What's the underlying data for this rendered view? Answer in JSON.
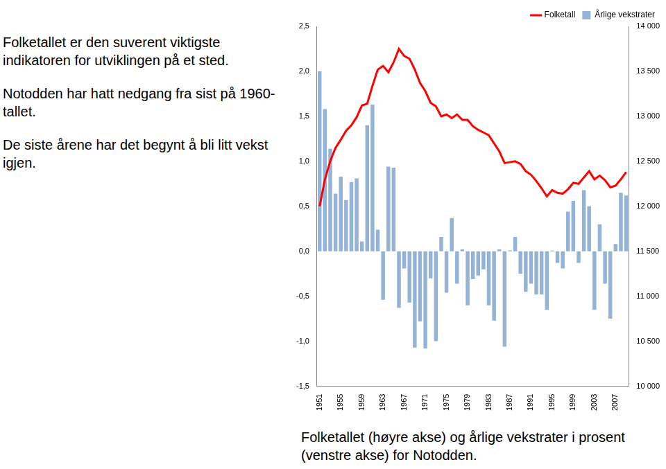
{
  "chart_data": {
    "type": "bar",
    "title": "Folketallet (høyre akse) og årlige vekstrater i prosent (venstre akse) for Notodden.",
    "annotations": [
      "Folketallet er den suverent viktigste indikatoren for utviklingen på et sted.",
      "Notodden har hatt nedgang fra sist på 1960-tallet.",
      "De siste årene har det begynt å bli litt vekst igjen."
    ],
    "categories": [
      "1951",
      null,
      null,
      null,
      "1955",
      null,
      null,
      null,
      "1959",
      null,
      null,
      null,
      "1963",
      null,
      null,
      null,
      "1967",
      null,
      null,
      null,
      "1971",
      null,
      null,
      null,
      "1975",
      null,
      null,
      null,
      "1979",
      null,
      null,
      null,
      "1983",
      null,
      null,
      null,
      "1987",
      null,
      null,
      null,
      "1991",
      null,
      null,
      null,
      "1995",
      null,
      null,
      null,
      "1999",
      null,
      null,
      null,
      "2003",
      null,
      null,
      null,
      "2007",
      null,
      null
    ],
    "series": [
      {
        "name": "Årlige vekstrater",
        "type": "bar",
        "color": "#95b3d7",
        "values": [
          2.0,
          1.58,
          1.14,
          0.64,
          0.83,
          0.57,
          0.77,
          0.81,
          0.11,
          1.4,
          1.63,
          0.24,
          -0.54,
          0.94,
          0.93,
          -0.63,
          -0.19,
          -0.57,
          -1.07,
          -0.78,
          -1.08,
          -0.3,
          -1.0,
          0.16,
          -0.46,
          0.37,
          -0.36,
          0.02,
          -0.6,
          -0.31,
          -0.27,
          -0.2,
          -0.6,
          -0.77,
          0.02,
          -1.06,
          0.01,
          0.16,
          -0.25,
          -0.45,
          -0.36,
          -0.48,
          -0.48,
          -0.65,
          0.01,
          -0.13,
          -0.19,
          0.44,
          0.56,
          -0.13,
          0.68,
          0.5,
          -0.65,
          0.3,
          -0.36,
          -0.75,
          0.08,
          0.65,
          0.62
        ]
      },
      {
        "name": "Folketall",
        "type": "line",
        "color": "#ff0000",
        "axis": "y2",
        "values": [
          12000,
          12300,
          12500,
          12650,
          12740,
          12840,
          12900,
          12990,
          13120,
          13140,
          13340,
          13520,
          13560,
          13490,
          13600,
          13750,
          13670,
          13640,
          13520,
          13370,
          13280,
          13150,
          13110,
          13000,
          13020,
          12980,
          13020,
          12960,
          12960,
          12890,
          12850,
          12820,
          12790,
          12700,
          12610,
          12480,
          12490,
          12500,
          12470,
          12390,
          12350,
          12280,
          12200,
          12110,
          12180,
          12150,
          12140,
          12190,
          12260,
          12250,
          12320,
          12390,
          12300,
          12340,
          12290,
          12210,
          12230,
          12300,
          12380
        ]
      }
    ],
    "ylim": [
      -1.5,
      2.5
    ],
    "yticks": [
      {
        "value": -1.5,
        "label": "-1,5"
      },
      {
        "value": -1,
        "label": "-1,0"
      },
      {
        "value": -0.5,
        "label": "-0,5"
      },
      {
        "value": 0,
        "label": "0,0"
      },
      {
        "value": 0.5,
        "label": "0,5"
      },
      {
        "value": 1,
        "label": "1,0"
      },
      {
        "value": 1.5,
        "label": "1,5"
      },
      {
        "value": 2,
        "label": "2,0"
      },
      {
        "value": 2.5,
        "label": "2,5"
      }
    ],
    "y2lim": [
      10000,
      14000
    ],
    "y2ticks": [
      {
        "value": 10000,
        "label": "10 000"
      },
      {
        "value": 10500,
        "label": "10 500"
      },
      {
        "value": 11000,
        "label": "11 000"
      },
      {
        "value": 11500,
        "label": "11 500"
      },
      {
        "value": 12000,
        "label": "12 000"
      },
      {
        "value": 12500,
        "label": "12 500"
      },
      {
        "value": 13000,
        "label": "13 000"
      },
      {
        "value": 13500,
        "label": "13 500"
      },
      {
        "value": 14000,
        "label": "14 000"
      }
    ],
    "grid": false,
    "legend": "upper right"
  }
}
